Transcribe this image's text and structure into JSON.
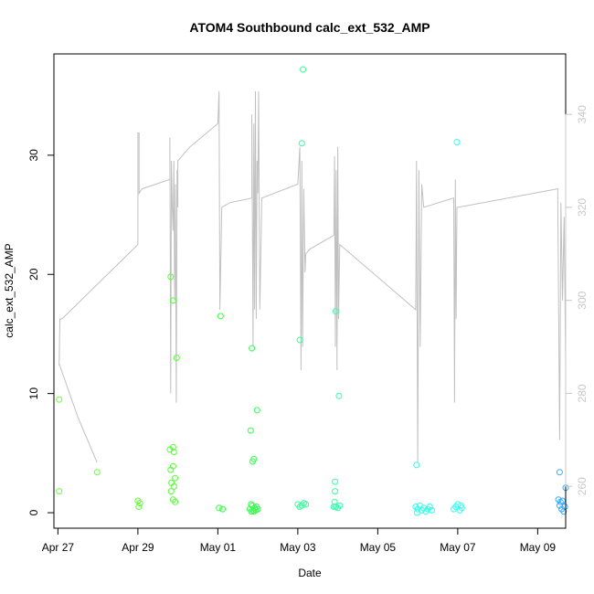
{
  "chart_data": {
    "type": "scatter",
    "title": "ATOM4 Southbound calc_ext_532_AMP",
    "xlabel": "Date",
    "ylabel": "calc_ext_532_AMP",
    "xlim": [
      -0.1,
      12.7
    ],
    "ylim": [
      -1.3,
      38.5
    ],
    "y2lim": [
      251,
      353
    ],
    "x_ticks": [
      {
        "value": 0,
        "label": "Apr 27"
      },
      {
        "value": 2,
        "label": "Apr 29"
      },
      {
        "value": 4,
        "label": "May 01"
      },
      {
        "value": 6,
        "label": "May 03"
      },
      {
        "value": 8,
        "label": "May 05"
      },
      {
        "value": 10,
        "label": "May 07"
      },
      {
        "value": 12,
        "label": "May 09"
      }
    ],
    "y_ticks": [
      {
        "value": 0,
        "label": "0"
      },
      {
        "value": 10,
        "label": "10"
      },
      {
        "value": 20,
        "label": "20"
      },
      {
        "value": 30,
        "label": "30"
      }
    ],
    "y2_ticks": [
      {
        "value": 260,
        "label": "260"
      },
      {
        "value": 280,
        "label": "280"
      },
      {
        "value": 300,
        "label": "300"
      },
      {
        "value": 320,
        "label": "320"
      },
      {
        "value": 340,
        "label": "340"
      }
    ],
    "grid": false,
    "legend": "none",
    "colors": {
      "line": "#c0c0c0",
      "right_axis": "#c8c8c8",
      "frame": "#000000"
    },
    "points": [
      {
        "x": 0.03,
        "y": 9.5,
        "color": "#66ff33"
      },
      {
        "x": 0.03,
        "y": 1.8,
        "color": "#66ff33"
      },
      {
        "x": 0.98,
        "y": 3.4,
        "color": "#66ff33"
      },
      {
        "x": 2.0,
        "y": 1.0,
        "color": "#5cff33"
      },
      {
        "x": 2.02,
        "y": 0.5,
        "color": "#5cff33"
      },
      {
        "x": 2.05,
        "y": 0.8,
        "color": "#5cff33"
      },
      {
        "x": 2.82,
        "y": 19.8,
        "color": "#52ff33"
      },
      {
        "x": 2.8,
        "y": 5.3,
        "color": "#52ff33"
      },
      {
        "x": 2.82,
        "y": 3.6,
        "color": "#52ff33"
      },
      {
        "x": 2.84,
        "y": 2.5,
        "color": "#52ff33"
      },
      {
        "x": 2.83,
        "y": 1.8,
        "color": "#52ff33"
      },
      {
        "x": 2.88,
        "y": 17.8,
        "color": "#52ff33"
      },
      {
        "x": 2.88,
        "y": 5.5,
        "color": "#52ff33"
      },
      {
        "x": 2.9,
        "y": 5.1,
        "color": "#52ff33"
      },
      {
        "x": 2.88,
        "y": 3.9,
        "color": "#52ff33"
      },
      {
        "x": 2.93,
        "y": 2.9,
        "color": "#52ff33"
      },
      {
        "x": 2.9,
        "y": 2.2,
        "color": "#52ff33"
      },
      {
        "x": 2.88,
        "y": 1.1,
        "color": "#52ff33"
      },
      {
        "x": 2.93,
        "y": 0.9,
        "color": "#52ff33"
      },
      {
        "x": 2.97,
        "y": 13.0,
        "color": "#52ff33"
      },
      {
        "x": 4.07,
        "y": 16.5,
        "color": "#33ff40"
      },
      {
        "x": 4.03,
        "y": 0.4,
        "color": "#33ff40"
      },
      {
        "x": 4.12,
        "y": 0.3,
        "color": "#33ff40"
      },
      {
        "x": 4.85,
        "y": 13.8,
        "color": "#33ff4d"
      },
      {
        "x": 4.82,
        "y": 6.9,
        "color": "#33ff4d"
      },
      {
        "x": 4.87,
        "y": 4.3,
        "color": "#33ff4d"
      },
      {
        "x": 4.9,
        "y": 4.5,
        "color": "#33ff4d"
      },
      {
        "x": 4.98,
        "y": 8.6,
        "color": "#33ff4d"
      },
      {
        "x": 4.8,
        "y": 0.3,
        "color": "#33ff4d"
      },
      {
        "x": 4.84,
        "y": 0.1,
        "color": "#33ff4d"
      },
      {
        "x": 4.86,
        "y": 0.6,
        "color": "#33ff4d"
      },
      {
        "x": 4.88,
        "y": 0.2,
        "color": "#33ff4d"
      },
      {
        "x": 4.9,
        "y": 0.1,
        "color": "#33ff4d"
      },
      {
        "x": 4.92,
        "y": 0.4,
        "color": "#33ff4d"
      },
      {
        "x": 4.95,
        "y": 0.2,
        "color": "#33ff4d"
      },
      {
        "x": 4.97,
        "y": 0.5,
        "color": "#33ff4d"
      },
      {
        "x": 4.83,
        "y": 0.7,
        "color": "#33ff4d"
      },
      {
        "x": 5.0,
        "y": 0.3,
        "color": "#33ff4d"
      },
      {
        "x": 6.13,
        "y": 37.2,
        "color": "#33ff99"
      },
      {
        "x": 6.1,
        "y": 31.0,
        "color": "#33ff99"
      },
      {
        "x": 6.05,
        "y": 14.5,
        "color": "#33ff99"
      },
      {
        "x": 6.0,
        "y": 0.7,
        "color": "#33ff99"
      },
      {
        "x": 6.05,
        "y": 0.5,
        "color": "#33ff99"
      },
      {
        "x": 6.1,
        "y": 0.6,
        "color": "#33ff99"
      },
      {
        "x": 6.15,
        "y": 0.8,
        "color": "#33ff99"
      },
      {
        "x": 6.2,
        "y": 0.7,
        "color": "#33ff99"
      },
      {
        "x": 6.95,
        "y": 16.9,
        "color": "#33ffa6"
      },
      {
        "x": 7.03,
        "y": 9.8,
        "color": "#33ffa6"
      },
      {
        "x": 6.93,
        "y": 2.6,
        "color": "#33ffa6"
      },
      {
        "x": 6.93,
        "y": 1.8,
        "color": "#33ffa6"
      },
      {
        "x": 6.92,
        "y": 0.9,
        "color": "#33ffa6"
      },
      {
        "x": 6.95,
        "y": 0.5,
        "color": "#33ffa6"
      },
      {
        "x": 7.0,
        "y": 0.4,
        "color": "#33ffa6"
      },
      {
        "x": 7.05,
        "y": 0.6,
        "color": "#33ffa6"
      },
      {
        "x": 6.9,
        "y": 0.5,
        "color": "#33ffa6"
      },
      {
        "x": 8.97,
        "y": 4.0,
        "color": "#33ffe6"
      },
      {
        "x": 8.95,
        "y": 0.5,
        "color": "#33ffe6"
      },
      {
        "x": 9.0,
        "y": 0.3,
        "color": "#33ffe6"
      },
      {
        "x": 9.05,
        "y": 0.6,
        "color": "#33ffe6"
      },
      {
        "x": 9.1,
        "y": 0.2,
        "color": "#33ffe6"
      },
      {
        "x": 9.15,
        "y": 0.4,
        "color": "#33ffe6"
      },
      {
        "x": 9.2,
        "y": 0.1,
        "color": "#33ffe6"
      },
      {
        "x": 9.25,
        "y": 0.3,
        "color": "#33ffe6"
      },
      {
        "x": 9.3,
        "y": 0.5,
        "color": "#33ffe6"
      },
      {
        "x": 9.35,
        "y": 0.2,
        "color": "#33ffe6"
      },
      {
        "x": 8.98,
        "y": 0.0,
        "color": "#33ffe6"
      },
      {
        "x": 9.98,
        "y": 31.1,
        "color": "#33fff2"
      },
      {
        "x": 9.9,
        "y": 0.3,
        "color": "#33fff2"
      },
      {
        "x": 9.95,
        "y": 0.5,
        "color": "#33fff2"
      },
      {
        "x": 10.0,
        "y": 0.7,
        "color": "#33fff2"
      },
      {
        "x": 10.05,
        "y": 0.2,
        "color": "#33fff2"
      },
      {
        "x": 10.1,
        "y": 0.4,
        "color": "#33fff2"
      },
      {
        "x": 10.08,
        "y": 0.6,
        "color": "#33fff2"
      },
      {
        "x": 12.55,
        "y": 3.4,
        "color": "#33aaff"
      },
      {
        "x": 12.7,
        "y": 2.1,
        "color": "#33aaff"
      },
      {
        "x": 12.52,
        "y": 1.1,
        "color": "#33aaff"
      },
      {
        "x": 12.57,
        "y": 0.9,
        "color": "#33aaff"
      },
      {
        "x": 12.62,
        "y": 1.0,
        "color": "#33aaff"
      },
      {
        "x": 12.55,
        "y": 0.6,
        "color": "#33aaff"
      },
      {
        "x": 12.6,
        "y": 0.3,
        "color": "#33aaff"
      },
      {
        "x": 12.65,
        "y": 0.1,
        "color": "#33aaff"
      },
      {
        "x": 12.68,
        "y": 0.5,
        "color": "#33aaff"
      }
    ],
    "line_y2": [
      [
        0.03,
        286
      ],
      [
        0.05,
        296
      ],
      [
        0.1,
        296
      ],
      [
        2.0,
        312
      ],
      [
        2.0,
        336
      ],
      [
        2.03,
        336
      ],
      [
        2.03,
        323
      ],
      [
        2.1,
        324
      ],
      [
        2.8,
        326
      ],
      [
        2.8,
        335
      ],
      [
        2.82,
        280
      ],
      [
        2.84,
        330
      ],
      [
        2.86,
        320
      ],
      [
        2.88,
        315
      ],
      [
        2.9,
        330
      ],
      [
        2.92,
        300
      ],
      [
        2.94,
        325
      ],
      [
        2.96,
        278
      ],
      [
        2.98,
        328
      ],
      [
        3.0,
        320
      ],
      [
        3.0,
        330
      ],
      [
        3.3,
        333
      ],
      [
        4.0,
        338
      ],
      [
        4.03,
        345
      ],
      [
        4.05,
        298
      ],
      [
        4.1,
        320
      ],
      [
        4.3,
        321
      ],
      [
        4.85,
        322
      ],
      [
        4.85,
        340
      ],
      [
        4.88,
        290
      ],
      [
        4.9,
        338
      ],
      [
        4.92,
        298
      ],
      [
        4.94,
        345
      ],
      [
        4.96,
        296
      ],
      [
        4.98,
        330
      ],
      [
        5.0,
        323
      ],
      [
        5.02,
        345
      ],
      [
        5.05,
        298
      ],
      [
        5.1,
        322
      ],
      [
        6.0,
        325
      ],
      [
        6.05,
        333
      ],
      [
        6.08,
        285
      ],
      [
        6.1,
        330
      ],
      [
        6.12,
        290
      ],
      [
        6.15,
        324
      ],
      [
        6.18,
        306
      ],
      [
        6.2,
        310
      ],
      [
        6.3,
        311
      ],
      [
        6.9,
        314
      ],
      [
        6.92,
        331
      ],
      [
        6.94,
        290
      ],
      [
        6.96,
        328
      ],
      [
        6.98,
        285
      ],
      [
        7.0,
        333
      ],
      [
        7.02,
        296
      ],
      [
        7.05,
        312
      ],
      [
        8.95,
        298
      ],
      [
        8.97,
        330
      ],
      [
        9.0,
        265
      ],
      [
        9.03,
        328
      ],
      [
        9.06,
        290
      ],
      [
        9.1,
        325
      ],
      [
        9.15,
        320
      ],
      [
        9.9,
        322
      ],
      [
        9.92,
        278
      ],
      [
        9.94,
        326
      ],
      [
        9.96,
        296
      ],
      [
        9.98,
        320
      ],
      [
        10.0,
        320
      ],
      [
        12.5,
        324
      ],
      [
        12.55,
        270
      ],
      [
        12.58,
        321
      ],
      [
        12.62,
        300
      ],
      [
        12.66,
        318
      ],
      [
        12.7,
        286
      ]
    ],
    "line_y": [
      [
        0.03,
        12.5
      ],
      [
        0.5,
        8.0
      ],
      [
        0.98,
        4.2
      ]
    ]
  }
}
